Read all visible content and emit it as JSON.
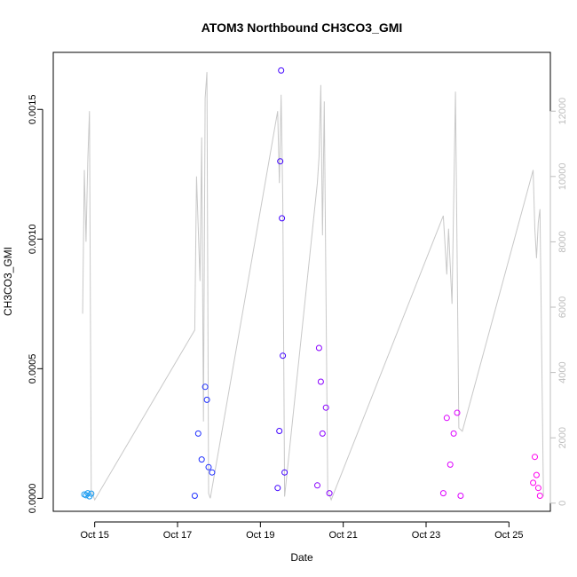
{
  "chart_data": {
    "type": "scatter",
    "title": "ATOM3 Northbound CH3CO3_GMI",
    "xlabel": "Date",
    "ylabel": "CH3CO3_GMI",
    "xlim": [
      "2016-10-14 00:00",
      "2016-10-26 00:00"
    ],
    "ylim": [
      -5e-05,
      0.00172
    ],
    "y2lim": [
      -250,
      13800
    ],
    "x_ticks": [
      {
        "t": "2016-10-15",
        "label": "Oct 15"
      },
      {
        "t": "2016-10-17",
        "label": "Oct 17"
      },
      {
        "t": "2016-10-19",
        "label": "Oct 19"
      },
      {
        "t": "2016-10-21",
        "label": "Oct 21"
      },
      {
        "t": "2016-10-23",
        "label": "Oct 23"
      },
      {
        "t": "2016-10-25",
        "label": "Oct 25"
      }
    ],
    "y_ticks": [
      {
        "v": 0.0,
        "label": "0.0000"
      },
      {
        "v": 0.0005,
        "label": "0.0005"
      },
      {
        "v": 0.001,
        "label": "0.0010"
      },
      {
        "v": 0.0015,
        "label": "0.0015"
      }
    ],
    "y2_ticks": [
      {
        "v": 0,
        "label": "0"
      },
      {
        "v": 2000,
        "label": "2000"
      },
      {
        "v": 4000,
        "label": "4000"
      },
      {
        "v": 6000,
        "label": "6000"
      },
      {
        "v": 8000,
        "label": "8000"
      },
      {
        "v": 10000,
        "label": "10000"
      },
      {
        "v": 12000,
        "label": "12000"
      }
    ],
    "grid": false,
    "marker": "open-circle",
    "series": [
      {
        "color": "#1a9bf0",
        "x": [
          "2016-10-14 18:00",
          "2016-10-14 19:00",
          "2016-10-14 20:00",
          "2016-10-14 21:00",
          "2016-10-14 22:00"
        ],
        "y": [
          1.5e-05,
          1.2e-05,
          2e-05,
          8e-06,
          1.8e-05
        ]
      },
      {
        "color": "#1f2fff",
        "x": [
          "2016-10-17 10:00",
          "2016-10-17 12:00",
          "2016-10-17 14:00",
          "2016-10-17 16:00",
          "2016-10-17 17:00",
          "2016-10-17 18:00",
          "2016-10-17 20:00"
        ],
        "y": [
          1e-05,
          0.00025,
          0.00015,
          0.00043,
          0.00038,
          0.00012,
          0.0001
        ]
      },
      {
        "color": "#3f00ff",
        "x": [
          "2016-10-19 10:00",
          "2016-10-19 11:00",
          "2016-10-19 11:30",
          "2016-10-19 12:00",
          "2016-10-19 12:30",
          "2016-10-19 13:00",
          "2016-10-19 14:00"
        ],
        "y": [
          4e-05,
          0.00026,
          0.0013,
          0.00165,
          0.00108,
          0.00055,
          0.0001
        ]
      },
      {
        "color": "#8800ff",
        "x": [
          "2016-10-20 09:00",
          "2016-10-20 10:00",
          "2016-10-20 11:00",
          "2016-10-20 12:00",
          "2016-10-20 14:00",
          "2016-10-20 16:00"
        ],
        "y": [
          5e-05,
          0.00058,
          0.00045,
          0.00025,
          0.00035,
          2e-05
        ]
      },
      {
        "color": "#dd00ff",
        "x": [
          "2016-10-23 10:00",
          "2016-10-23 12:00",
          "2016-10-23 14:00",
          "2016-10-23 16:00",
          "2016-10-23 18:00",
          "2016-10-23 20:00"
        ],
        "y": [
          2e-05,
          0.00031,
          0.00013,
          0.00025,
          0.00033,
          1e-05
        ]
      },
      {
        "color": "#ff00ee",
        "x": [
          "2016-10-25 14:00",
          "2016-10-25 15:00",
          "2016-10-25 16:00",
          "2016-10-25 17:00",
          "2016-10-25 18:00"
        ],
        "y": [
          6e-05,
          0.00016,
          9e-05,
          4e-05,
          1e-05
        ]
      }
    ],
    "altitude_line": {
      "color": "#c8c8c8",
      "axis": "right",
      "x": [
        "2016-10-14 17:00",
        "2016-10-14 18:00",
        "2016-10-14 19:00",
        "2016-10-14 20:00",
        "2016-10-14 21:00",
        "2016-10-14 22:00",
        "2016-10-15 00:00",
        "2016-10-17 10:00",
        "2016-10-17 11:00",
        "2016-10-17 13:00",
        "2016-10-17 14:00",
        "2016-10-17 15:00",
        "2016-10-17 16:00",
        "2016-10-17 17:00",
        "2016-10-17 18:00",
        "2016-10-17 19:00",
        "2016-10-19 10:00",
        "2016-10-19 11:00",
        "2016-10-19 12:00",
        "2016-10-19 13:00",
        "2016-10-19 14:00",
        "2016-10-20 09:00",
        "2016-10-20 10:00",
        "2016-10-20 11:00",
        "2016-10-20 12:00",
        "2016-10-20 13:00",
        "2016-10-20 15:00",
        "2016-10-20 17:00",
        "2016-10-23 10:00",
        "2016-10-23 12:00",
        "2016-10-23 13:00",
        "2016-10-23 15:00",
        "2016-10-23 17:00",
        "2016-10-23 19:00",
        "2016-10-23 21:00",
        "2016-10-25 14:00",
        "2016-10-25 15:00",
        "2016-10-25 16:00",
        "2016-10-25 17:00",
        "2016-10-25 18:00",
        "2016-10-25 20:00"
      ],
      "y": [
        5800,
        10200,
        8000,
        10500,
        12000,
        400,
        100,
        5300,
        10000,
        6800,
        11200,
        2500,
        12400,
        13200,
        300,
        150,
        12000,
        9800,
        12500,
        9200,
        200,
        9800,
        10600,
        12800,
        8200,
        12300,
        400,
        100,
        8800,
        7000,
        8400,
        6100,
        12600,
        2300,
        2200,
        10200,
        8400,
        7500,
        8600,
        9000,
        200
      ]
    }
  }
}
